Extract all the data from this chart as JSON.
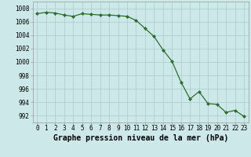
{
  "x": [
    0,
    1,
    2,
    3,
    4,
    5,
    6,
    7,
    8,
    9,
    10,
    11,
    12,
    13,
    14,
    15,
    16,
    17,
    18,
    19,
    20,
    21,
    22,
    23
  ],
  "y": [
    1007.2,
    1007.4,
    1007.3,
    1007.0,
    1006.8,
    1007.2,
    1007.1,
    1007.0,
    1007.0,
    1006.9,
    1006.8,
    1006.2,
    1005.0,
    1003.8,
    1001.8,
    1000.1,
    997.0,
    994.5,
    995.6,
    993.8,
    993.7,
    992.5,
    992.8,
    991.9
  ],
  "line_color": "#2d6e2d",
  "marker": "D",
  "marker_size": 2.0,
  "bg_color": "#cce8e8",
  "grid_color": "#aacccc",
  "ylabel_ticks": [
    992,
    994,
    996,
    998,
    1000,
    1002,
    1004,
    1006,
    1008
  ],
  "xlabel": "Graphe pression niveau de la mer (hPa)",
  "xlim": [
    -0.5,
    23.5
  ],
  "ylim": [
    991.0,
    1009.0
  ],
  "tick_fontsize": 5.5,
  "label_fontsize": 7.0
}
